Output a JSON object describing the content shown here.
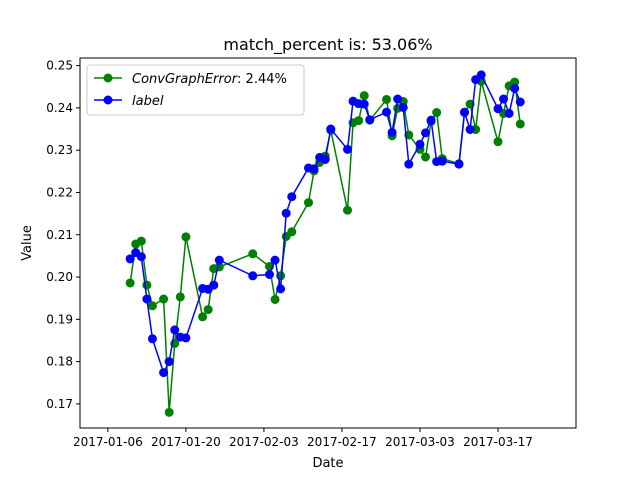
{
  "chart_data": {
    "type": "line",
    "title": "match_percent is: 53.06%",
    "xlabel": "Date",
    "ylabel": "Value",
    "xlim": [
      "2017-01-01",
      "2017-03-31"
    ],
    "ylim": [
      0.1643,
      0.2518
    ],
    "x_ticks": [
      "2017-01-06",
      "2017-01-20",
      "2017-02-03",
      "2017-02-17",
      "2017-03-03",
      "2017-03-17"
    ],
    "y_ticks": [
      0.17,
      0.18,
      0.19,
      0.2,
      0.21,
      0.22,
      0.23,
      0.24,
      0.25
    ],
    "y_tick_labels": [
      "0.17",
      "0.18",
      "0.19",
      "0.20",
      "0.21",
      "0.22",
      "0.23",
      "0.24",
      "0.25"
    ],
    "legend_position": "upper-left",
    "grid": false,
    "series": [
      {
        "name": "ConvGraphError",
        "legend_suffix": ": 2.44%",
        "color": "#008000",
        "marker": "circle",
        "points": [
          [
            "2017-01-10",
            0.1986
          ],
          [
            "2017-01-11",
            0.2078
          ],
          [
            "2017-01-12",
            0.2085
          ],
          [
            "2017-01-13",
            0.1981
          ],
          [
            "2017-01-14",
            0.1932
          ],
          [
            "2017-01-16",
            0.1948
          ],
          [
            "2017-01-17",
            0.168
          ],
          [
            "2017-01-18",
            0.1843
          ],
          [
            "2017-01-19",
            0.1953
          ],
          [
            "2017-01-20",
            0.2095
          ],
          [
            "2017-01-23",
            0.1906
          ],
          [
            "2017-01-24",
            0.1923
          ],
          [
            "2017-01-25",
            0.202
          ],
          [
            "2017-01-26",
            0.2024
          ],
          [
            "2017-02-01",
            0.2055
          ],
          [
            "2017-02-04",
            0.2025
          ],
          [
            "2017-02-05",
            0.1947
          ],
          [
            "2017-02-06",
            0.2003
          ],
          [
            "2017-02-07",
            0.2096
          ],
          [
            "2017-02-08",
            0.2107
          ],
          [
            "2017-02-11",
            0.2176
          ],
          [
            "2017-02-12",
            0.2251
          ],
          [
            "2017-02-13",
            0.2271
          ],
          [
            "2017-02-14",
            0.2286
          ],
          [
            "2017-02-15",
            0.2347
          ],
          [
            "2017-02-18",
            0.2158
          ],
          [
            "2017-02-19",
            0.2365
          ],
          [
            "2017-02-20",
            0.237
          ],
          [
            "2017-02-21",
            0.2429
          ],
          [
            "2017-02-22",
            0.2371
          ],
          [
            "2017-02-25",
            0.242
          ],
          [
            "2017-02-26",
            0.2334
          ],
          [
            "2017-02-27",
            0.2399
          ],
          [
            "2017-02-28",
            0.2415
          ],
          [
            "2017-03-01",
            0.2336
          ],
          [
            "2017-03-03",
            0.2302
          ],
          [
            "2017-03-04",
            0.2284
          ],
          [
            "2017-03-05",
            0.2368
          ],
          [
            "2017-03-06",
            0.2389
          ],
          [
            "2017-03-07",
            0.228
          ],
          [
            "2017-03-10",
            0.2268
          ],
          [
            "2017-03-11",
            0.2389
          ],
          [
            "2017-03-12",
            0.2409
          ],
          [
            "2017-03-13",
            0.2349
          ],
          [
            "2017-03-14",
            0.2463
          ],
          [
            "2017-03-17",
            0.232
          ],
          [
            "2017-03-18",
            0.2387
          ],
          [
            "2017-03-19",
            0.2452
          ],
          [
            "2017-03-20",
            0.2461
          ],
          [
            "2017-03-21",
            0.2362
          ]
        ]
      },
      {
        "name": "label",
        "legend_suffix": "",
        "color": "#0000ff",
        "marker": "circle",
        "points": [
          [
            "2017-01-10",
            0.2043
          ],
          [
            "2017-01-11",
            0.2058
          ],
          [
            "2017-01-12",
            0.2048
          ],
          [
            "2017-01-13",
            0.1948
          ],
          [
            "2017-01-14",
            0.1854
          ],
          [
            "2017-01-16",
            0.1774
          ],
          [
            "2017-01-17",
            0.18
          ],
          [
            "2017-01-18",
            0.1875
          ],
          [
            "2017-01-19",
            0.1858
          ],
          [
            "2017-01-20",
            0.1856
          ],
          [
            "2017-01-23",
            0.1973
          ],
          [
            "2017-01-24",
            0.1971
          ],
          [
            "2017-01-25",
            0.1981
          ],
          [
            "2017-01-26",
            0.204
          ],
          [
            "2017-02-01",
            0.2003
          ],
          [
            "2017-02-04",
            0.2006
          ],
          [
            "2017-02-05",
            0.204
          ],
          [
            "2017-02-06",
            0.1972
          ],
          [
            "2017-02-07",
            0.2151
          ],
          [
            "2017-02-08",
            0.219
          ],
          [
            "2017-02-11",
            0.2258
          ],
          [
            "2017-02-12",
            0.2256
          ],
          [
            "2017-02-13",
            0.2283
          ],
          [
            "2017-02-14",
            0.2278
          ],
          [
            "2017-02-15",
            0.235
          ],
          [
            "2017-02-18",
            0.2302
          ],
          [
            "2017-02-19",
            0.2416
          ],
          [
            "2017-02-20",
            0.241
          ],
          [
            "2017-02-21",
            0.2409
          ],
          [
            "2017-02-22",
            0.2372
          ],
          [
            "2017-02-25",
            0.239
          ],
          [
            "2017-02-26",
            0.2342
          ],
          [
            "2017-02-27",
            0.2421
          ],
          [
            "2017-02-28",
            0.2401
          ],
          [
            "2017-03-01",
            0.2267
          ],
          [
            "2017-03-03",
            0.2314
          ],
          [
            "2017-03-04",
            0.2341
          ],
          [
            "2017-03-05",
            0.2371
          ],
          [
            "2017-03-06",
            0.2273
          ],
          [
            "2017-03-07",
            0.2274
          ],
          [
            "2017-03-10",
            0.2267
          ],
          [
            "2017-03-11",
            0.239
          ],
          [
            "2017-03-12",
            0.2349
          ],
          [
            "2017-03-13",
            0.2467
          ],
          [
            "2017-03-14",
            0.2478
          ],
          [
            "2017-03-17",
            0.2398
          ],
          [
            "2017-03-18",
            0.2421
          ],
          [
            "2017-03-19",
            0.2387
          ],
          [
            "2017-03-20",
            0.2446
          ],
          [
            "2017-03-21",
            0.2414
          ]
        ]
      }
    ]
  }
}
